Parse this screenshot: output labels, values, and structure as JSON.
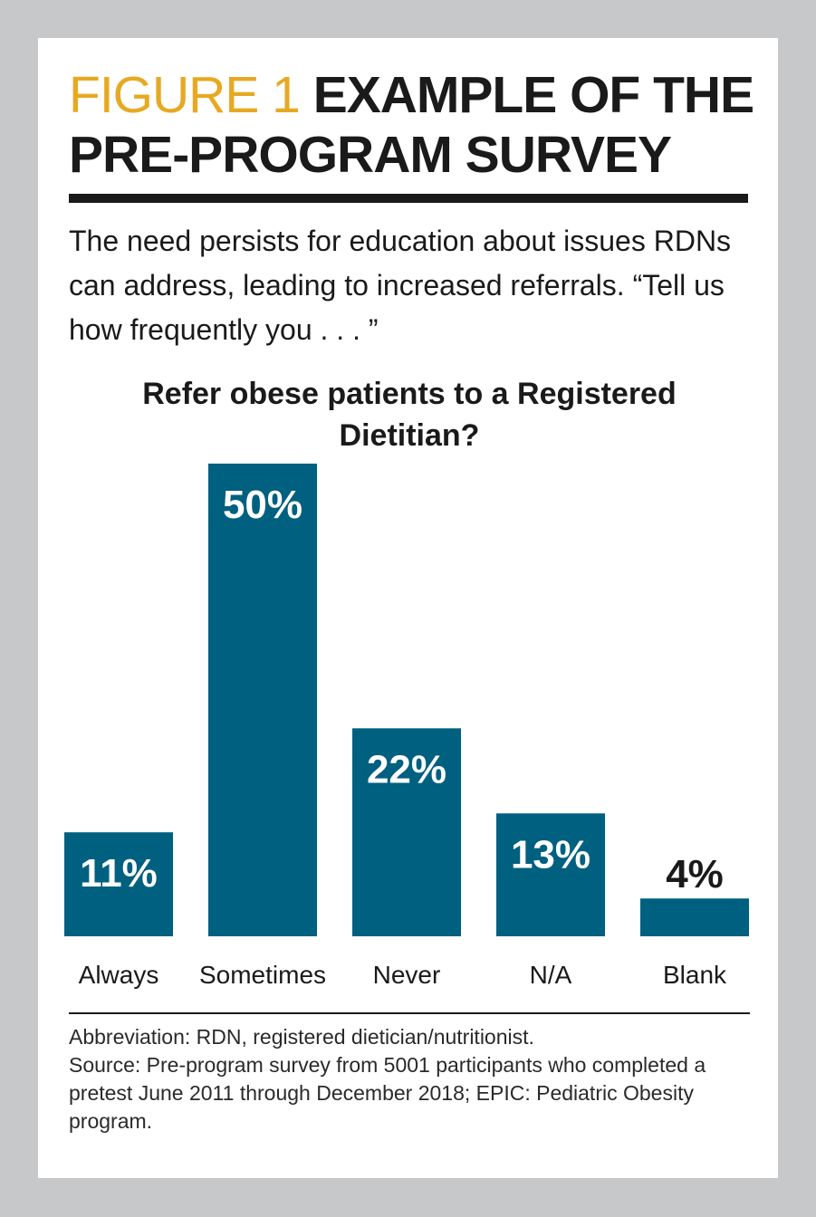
{
  "figure": {
    "label": "FIGURE 1",
    "title": "EXAMPLE OF THE PRE-PROGRAM SURVEY",
    "intro": "The need persists for education about issues RDNs can address, leading to increased referrals. “Tell us how frequently you . . . ”"
  },
  "chart_data": {
    "type": "bar",
    "title": "Refer obese patients to a Registered Dietitian?",
    "categories": [
      "Always",
      "Sometimes",
      "Never",
      "N/A",
      "Blank"
    ],
    "values": [
      11,
      50,
      22,
      13,
      4
    ],
    "value_labels": [
      "11%",
      "50%",
      "22%",
      "13%",
      "4%"
    ],
    "ylim": [
      0,
      50
    ],
    "xlabel": "",
    "ylabel": "",
    "grid": false,
    "bar_color": "#00607f",
    "label_color_inside": "#ffffff",
    "label_color_outside": "#1a1a1a"
  },
  "footnotes": {
    "abbreviation": "Abbreviation: RDN, registered dietician/nutritionist.",
    "source": "Source: Pre-program survey from 5001 participants who completed a pretest June 2011 through December 2018; EPIC: Pediatric Obesity program."
  },
  "colors": {
    "background": "#c7c8ca",
    "card": "#ffffff",
    "accent": "#e7a922",
    "text": "#1a1a1a"
  }
}
